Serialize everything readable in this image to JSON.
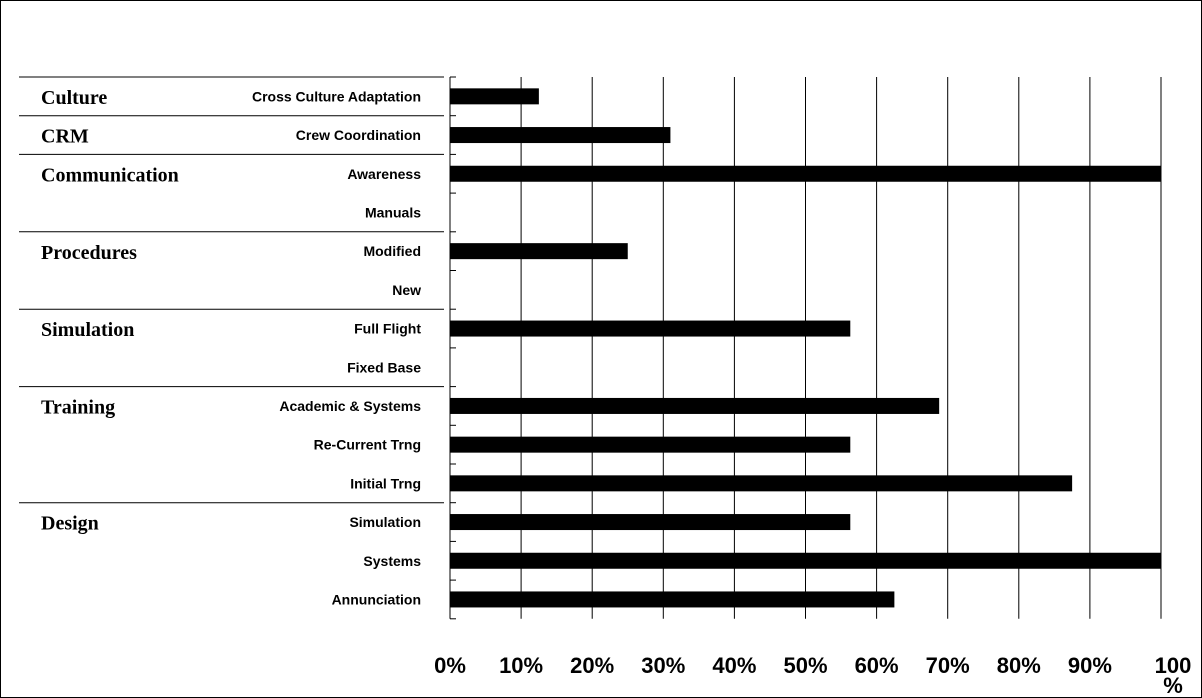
{
  "chart_data": {
    "type": "bar",
    "orientation": "horizontal",
    "title": "",
    "xlabel": "",
    "ylabel": "",
    "xlim": [
      0,
      100
    ],
    "grid": "vertical",
    "legend": "none",
    "bar_color": "#000000",
    "ticks": [
      "0%",
      "10%",
      "20%",
      "30%",
      "40%",
      "50%",
      "60%",
      "70%",
      "80%",
      "90%",
      "100%"
    ],
    "groups": [
      {
        "name": "Culture",
        "categories": [
          {
            "label": "Cross Culture Adaptation",
            "value": 12.5
          }
        ]
      },
      {
        "name": "CRM",
        "categories": [
          {
            "label": "Crew Coordination",
            "value": 31
          }
        ]
      },
      {
        "name": "Communication",
        "categories": [
          {
            "label": "Awareness",
            "value": 100
          },
          {
            "label": "Manuals",
            "value": 0
          }
        ]
      },
      {
        "name": "Procedures",
        "categories": [
          {
            "label": "Modified",
            "value": 25
          },
          {
            "label": "New",
            "value": 0
          }
        ]
      },
      {
        "name": "Simulation",
        "categories": [
          {
            "label": "Full Flight",
            "value": 56.3
          },
          {
            "label": "Fixed Base",
            "value": 0
          }
        ]
      },
      {
        "name": "Training",
        "categories": [
          {
            "label": "Academic & Systems",
            "value": 68.8
          },
          {
            "label": "Re-Current Trng",
            "value": 56.3
          },
          {
            "label": "Initial Trng",
            "value": 87.5
          }
        ]
      },
      {
        "name": "Design",
        "categories": [
          {
            "label": "Simulation",
            "value": 56.3
          },
          {
            "label": "Systems",
            "value": 100
          },
          {
            "label": "Annunciation",
            "value": 62.5
          }
        ]
      }
    ]
  }
}
